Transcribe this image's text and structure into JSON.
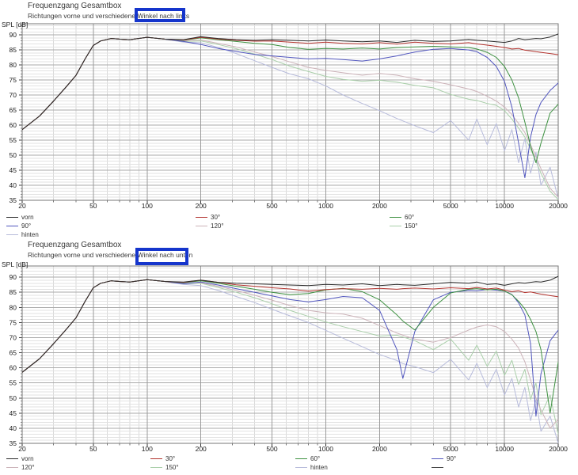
{
  "page": {
    "background": "#ffffff"
  },
  "chart_data": [
    {
      "type": "line",
      "title": "Frequenzgang Gesamtbox",
      "subtitle": "Richtungen vorne und verschiedene Winkel nach links",
      "subtitle_highlight": "nach links",
      "highlight_color": "#1535cc",
      "ylabel": "SPL [dB]",
      "x_scale": "log",
      "xlim": [
        20,
        20000
      ],
      "ylim": [
        35,
        93.7
      ],
      "grid": true,
      "x_ticks": [
        20,
        50,
        100,
        200,
        500,
        1000,
        2000,
        5000,
        10000,
        20000
      ],
      "y_ticks": [
        35,
        40,
        45,
        50,
        55,
        60,
        65,
        70,
        75,
        80,
        85,
        90
      ],
      "x": [
        20,
        25,
        30,
        35,
        40,
        45,
        50,
        55,
        63,
        70,
        80,
        100,
        125,
        160,
        200,
        250,
        315,
        400,
        500,
        630,
        800,
        1000,
        1250,
        1600,
        2000,
        2500,
        3150,
        4000,
        5000,
        6300,
        7000,
        8000,
        9000,
        10000,
        11000,
        12000,
        13000,
        14000,
        15000,
        16000,
        18000,
        20000
      ],
      "series": [
        {
          "name": "vorn",
          "color": "#2a2a2a",
          "spl": [
            58.5,
            63,
            68,
            72.5,
            76.5,
            82,
            86.5,
            88,
            88.8,
            88.6,
            88.4,
            89.2,
            88.6,
            88.4,
            89.4,
            88.8,
            88.4,
            88.2,
            88.4,
            88.2,
            88,
            88.3,
            88,
            87.7,
            88,
            87.5,
            88.2,
            87.8,
            88,
            88.5,
            88.2,
            88,
            87.7,
            87.5,
            88,
            88.8,
            88.4,
            88.6,
            88.8,
            88.7,
            89.3,
            90.3
          ]
        },
        {
          "name": "30°",
          "color": "#b2332e",
          "spl": [
            58.5,
            63,
            68,
            72.5,
            76.5,
            82,
            86.5,
            88,
            88.8,
            88.6,
            88.4,
            89.2,
            88.6,
            88.3,
            89.2,
            88.6,
            88.2,
            87.9,
            88,
            87.6,
            87.2,
            87.6,
            87.2,
            87,
            87.4,
            86.9,
            87.6,
            87.2,
            87,
            87.4,
            87,
            86.6,
            86.2,
            85.8,
            85.3,
            85.5,
            84.9,
            84.7,
            84.4,
            84.2,
            83.8,
            83.4
          ]
        },
        {
          "name": "60°",
          "color": "#3e9141",
          "spl": [
            58.5,
            63,
            68,
            72.5,
            76.5,
            82,
            86.5,
            88,
            88.8,
            88.6,
            88.4,
            89.2,
            88.6,
            88.2,
            89,
            88.4,
            87.8,
            87.2,
            86.8,
            85.8,
            85.2,
            85.5,
            85.3,
            85.6,
            85.3,
            85.8,
            86,
            86.2,
            86,
            85.8,
            85.3,
            84.2,
            82.5,
            79.5,
            75,
            69,
            61,
            53,
            47.5,
            54,
            64,
            67
          ]
        },
        {
          "name": "90°",
          "color": "#5156be",
          "spl": [
            58.5,
            63,
            68,
            72.5,
            76.5,
            82,
            86.5,
            88,
            88.8,
            88.6,
            88.4,
            89.2,
            88.6,
            87.8,
            86.8,
            85.5,
            84.5,
            83.5,
            83,
            82.5,
            82,
            82.2,
            81.8,
            81.3,
            82,
            83,
            84.3,
            85.2,
            85.5,
            85,
            84.4,
            82.5,
            79.5,
            74.5,
            66,
            54,
            42.5,
            56,
            63.5,
            67.5,
            71.5,
            74
          ]
        },
        {
          "name": "120°",
          "color": "#ccb3b9",
          "spl": [
            58.5,
            63,
            68,
            72.5,
            76.5,
            82,
            86.5,
            88,
            88.8,
            88.6,
            88.4,
            89.2,
            88.6,
            88,
            88.3,
            87.2,
            86,
            84.3,
            82.8,
            81,
            79.2,
            78.2,
            77.4,
            76.6,
            77.2,
            76.6,
            75.4,
            74.6,
            73.4,
            72,
            71.2,
            69.6,
            68,
            66,
            63.5,
            60.5,
            57.5,
            53.5,
            49.5,
            45.5,
            39,
            36
          ]
        },
        {
          "name": "150°",
          "color": "#aacfaa",
          "spl": [
            58.5,
            63,
            68,
            72.5,
            76.5,
            82,
            86.5,
            88,
            88.8,
            88.6,
            88.4,
            89.2,
            88.6,
            87.8,
            88,
            86.8,
            85.4,
            83.6,
            81.8,
            79.6,
            77.8,
            76.2,
            75.2,
            74.6,
            74.9,
            74.3,
            73.2,
            72.4,
            70.2,
            68.6,
            68.2,
            67.2,
            66.6,
            64.8,
            62,
            59,
            56,
            52,
            48,
            44,
            38,
            35.2
          ]
        },
        {
          "name": "hinten",
          "color": "#b7bbdb",
          "spl": [
            58.5,
            63,
            68,
            72.5,
            76.5,
            82,
            86.5,
            88,
            88.8,
            88.6,
            88.4,
            89.2,
            88.6,
            87.6,
            87.4,
            85.8,
            83.8,
            81.4,
            79.2,
            77,
            75.4,
            73,
            70,
            67.2,
            64.8,
            62.2,
            59.8,
            57.5,
            61.5,
            55,
            62,
            53.5,
            60.5,
            51.5,
            58.5,
            47.5,
            55.5,
            44,
            51,
            40,
            46,
            35.5
          ]
        }
      ],
      "legend_columns": [
        [
          {
            "label": "vorn",
            "color": "#2a2a2a"
          },
          {
            "label": "90°",
            "color": "#5156be"
          },
          {
            "label": "hinten",
            "color": "#b7bbdb"
          }
        ],
        [
          {
            "label": "30°",
            "color": "#b2332e"
          },
          {
            "label": "120°",
            "color": "#ccb3b9"
          }
        ],
        [
          {
            "label": "60°",
            "color": "#3e9141"
          },
          {
            "label": "150°",
            "color": "#aacfaa"
          }
        ]
      ]
    },
    {
      "type": "line",
      "title": "Frequenzgang Gesamtbox",
      "subtitle": "Richtungen vorne und verschiedene Winkel nach unten",
      "subtitle_highlight": "nach unten",
      "highlight_color": "#1535cc",
      "ylabel": "SPL [dB]",
      "x_scale": "log",
      "xlim": [
        20,
        20000
      ],
      "ylim": [
        35,
        93.7
      ],
      "grid": true,
      "x_ticks": [
        20,
        50,
        100,
        200,
        500,
        1000,
        2000,
        5000,
        10000,
        20000
      ],
      "y_ticks": [
        35,
        40,
        45,
        50,
        55,
        60,
        65,
        70,
        75,
        80,
        85,
        90
      ],
      "x": [
        20,
        25,
        30,
        35,
        40,
        45,
        50,
        55,
        63,
        70,
        80,
        100,
        125,
        160,
        200,
        250,
        315,
        400,
        500,
        630,
        800,
        1000,
        1250,
        1600,
        2000,
        2500,
        2700,
        3150,
        4000,
        5000,
        6300,
        7000,
        8000,
        9000,
        10000,
        11000,
        12000,
        13000,
        14000,
        15000,
        16000,
        18000,
        20000
      ],
      "series": [
        {
          "name": "vorn",
          "color": "#2a2a2a",
          "spl": [
            58.5,
            63,
            68,
            72.5,
            76.5,
            82,
            86.5,
            88,
            88.8,
            88.6,
            88.4,
            89.2,
            88.6,
            88.4,
            89,
            88.3,
            88,
            87.8,
            87.6,
            87.4,
            87.2,
            87.6,
            87.4,
            87.8,
            87.2,
            87.6,
            87.5,
            87.3,
            87.8,
            88.3,
            88,
            88.4,
            87.6,
            87.8,
            87.3,
            87.8,
            88.2,
            88,
            88.3,
            88.5,
            88.4,
            89,
            90.3
          ]
        },
        {
          "name": "30°",
          "color": "#b2332e",
          "spl": [
            58.5,
            63,
            68,
            72.5,
            76.5,
            82,
            86.5,
            88,
            88.8,
            88.6,
            88.4,
            89.2,
            88.6,
            88.3,
            89,
            88.3,
            87.5,
            87,
            86.5,
            86.1,
            85.4,
            85.9,
            86.2,
            86,
            86.3,
            86,
            86.2,
            86.4,
            86.1,
            86.5,
            86.2,
            86.6,
            86.1,
            86.4,
            85.7,
            85.2,
            85.5,
            84.9,
            85.1,
            84.7,
            84.4,
            83.9,
            83.5
          ]
        },
        {
          "name": "60°",
          "color": "#3e9141",
          "spl": [
            58.5,
            63,
            68,
            72.5,
            76.5,
            82,
            86.5,
            88,
            88.8,
            88.6,
            88.4,
            89.2,
            88.6,
            88.2,
            88.8,
            88,
            87,
            86,
            85,
            84.2,
            84.6,
            85.8,
            86.3,
            85.2,
            82.5,
            77.5,
            75.5,
            72.5,
            80,
            84.8,
            86,
            86.2,
            85.8,
            86,
            85.4,
            84.2,
            82,
            79.5,
            76,
            72,
            66,
            45,
            62
          ]
        },
        {
          "name": "90°",
          "color": "#5156be",
          "spl": [
            58.5,
            63,
            68,
            72.5,
            76.5,
            82,
            86.5,
            88,
            88.8,
            88.6,
            88.4,
            89.2,
            88.6,
            87.8,
            88.4,
            87.4,
            86.2,
            85,
            83.8,
            82.6,
            81.8,
            82.6,
            83.6,
            83.2,
            79,
            66,
            56.5,
            72,
            82.5,
            85,
            85.6,
            85.5,
            85.9,
            85.7,
            85.4,
            84.3,
            81.5,
            77.5,
            68,
            44,
            58,
            69,
            72.5
          ]
        },
        {
          "name": "120°",
          "color": "#ccb3b9",
          "spl": [
            58.5,
            63,
            68,
            72.5,
            76.5,
            82,
            86.5,
            88,
            88.8,
            88.6,
            88.4,
            89.2,
            88.6,
            88,
            88.2,
            87,
            85.6,
            84,
            82.4,
            80.6,
            79,
            78.2,
            77.8,
            76.4,
            74,
            71.5,
            70.8,
            69.5,
            68.5,
            70,
            72.5,
            73.5,
            74.2,
            73.6,
            72,
            69.5,
            66.5,
            62,
            56,
            50,
            46,
            40,
            43
          ]
        },
        {
          "name": "150°",
          "color": "#aacfaa",
          "spl": [
            58.5,
            63,
            68,
            72.5,
            76.5,
            82,
            86.5,
            88,
            88.8,
            88.6,
            88.4,
            89.2,
            88.6,
            87.8,
            88,
            86.6,
            85,
            83.2,
            81.2,
            79,
            77,
            75.2,
            73.6,
            72,
            70.5,
            70.8,
            70.2,
            69,
            66,
            69.5,
            62.5,
            67.5,
            60.5,
            65.5,
            57.5,
            62.5,
            54.5,
            59.5,
            49.5,
            55,
            44.5,
            51,
            38
          ]
        },
        {
          "name": "hinten",
          "color": "#b7bbdb",
          "spl": [
            58.5,
            63,
            68,
            72.5,
            76.5,
            82,
            86.5,
            88,
            88.8,
            88.6,
            88.4,
            89.2,
            88.6,
            87.6,
            87.2,
            85.6,
            83.6,
            81.6,
            79.4,
            77.2,
            75,
            72.4,
            69.8,
            67,
            64.4,
            62.4,
            61.4,
            60.4,
            58.4,
            62.8,
            56,
            61.5,
            53.5,
            59.5,
            51,
            56.5,
            47,
            53.5,
            42.5,
            49.5,
            39,
            44,
            35
          ]
        }
      ],
      "legend_columns": [
        [
          {
            "label": "vorn",
            "color": "#2a2a2a"
          },
          {
            "label": "120°",
            "color": "#ccb3b9"
          },
          {
            "label": "",
            "color": "#6a6a6a"
          }
        ],
        [
          {
            "label": "30°",
            "color": "#b2332e"
          },
          {
            "label": "150°",
            "color": "#aacfaa"
          },
          {
            "label": "",
            "color": "#6a6a6a"
          }
        ],
        [
          {
            "label": "60°",
            "color": "#3e9141"
          },
          {
            "label": "hinten",
            "color": "#b7bbdb"
          }
        ],
        [
          {
            "label": "90°",
            "color": "#5156be"
          },
          {
            "label": "",
            "color": "#444444"
          }
        ]
      ]
    }
  ]
}
